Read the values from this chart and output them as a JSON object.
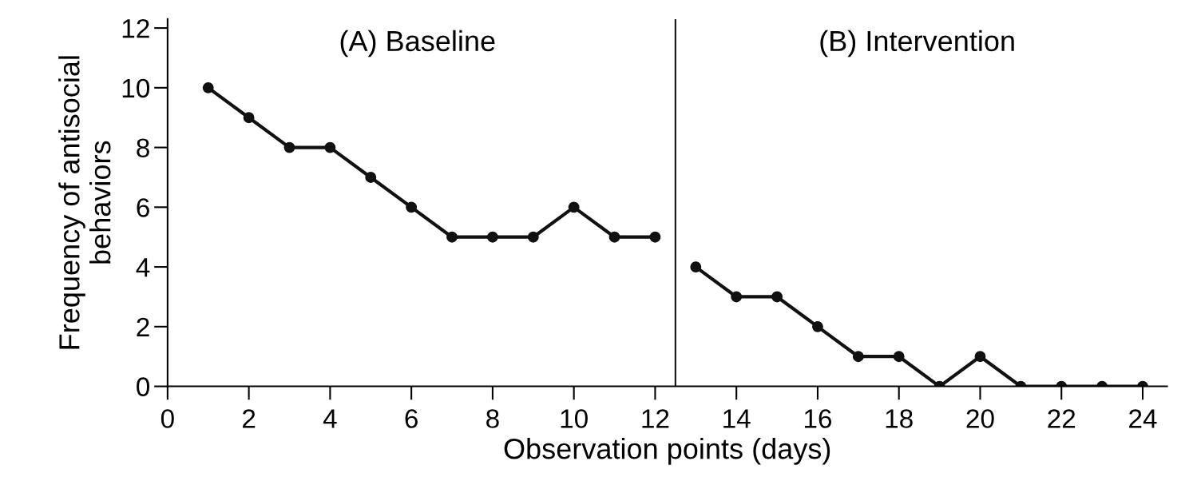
{
  "chart_data": {
    "type": "line",
    "xlabel": "Observation points (days)",
    "ylabel": "Frequency of antisocial\nbehaviors",
    "annotations": [
      "(A) Baseline",
      "(B) Intervention"
    ],
    "series": [
      {
        "color": "#111111",
        "x": [
          1,
          2,
          3,
          4,
          5,
          6,
          7,
          8,
          9,
          10,
          11,
          12
        ],
        "values": [
          10,
          9,
          8,
          8,
          7,
          6,
          5,
          5,
          5,
          6,
          5,
          5
        ]
      },
      {
        "color": "#111111",
        "x": [
          13,
          14,
          15,
          16,
          17,
          18,
          19,
          20,
          21,
          22,
          23,
          24
        ],
        "values": [
          4,
          3,
          3,
          2,
          1,
          1,
          0,
          1,
          0,
          0,
          0,
          0
        ]
      }
    ],
    "xlim": [
      0,
      24.6
    ],
    "xticks": [
      0,
      2,
      4,
      6,
      8,
      10,
      12,
      14,
      16,
      18,
      20,
      22,
      24
    ],
    "ylim": [
      0,
      12.3
    ],
    "yticks": [
      0,
      2,
      4,
      6,
      8,
      10,
      12
    ],
    "ref_lines": [
      {
        "axis": "x",
        "value": 12.5,
        "color": "#111111"
      }
    ],
    "grid": false,
    "legend": false,
    "marker": "circle",
    "line_style": "solid"
  }
}
